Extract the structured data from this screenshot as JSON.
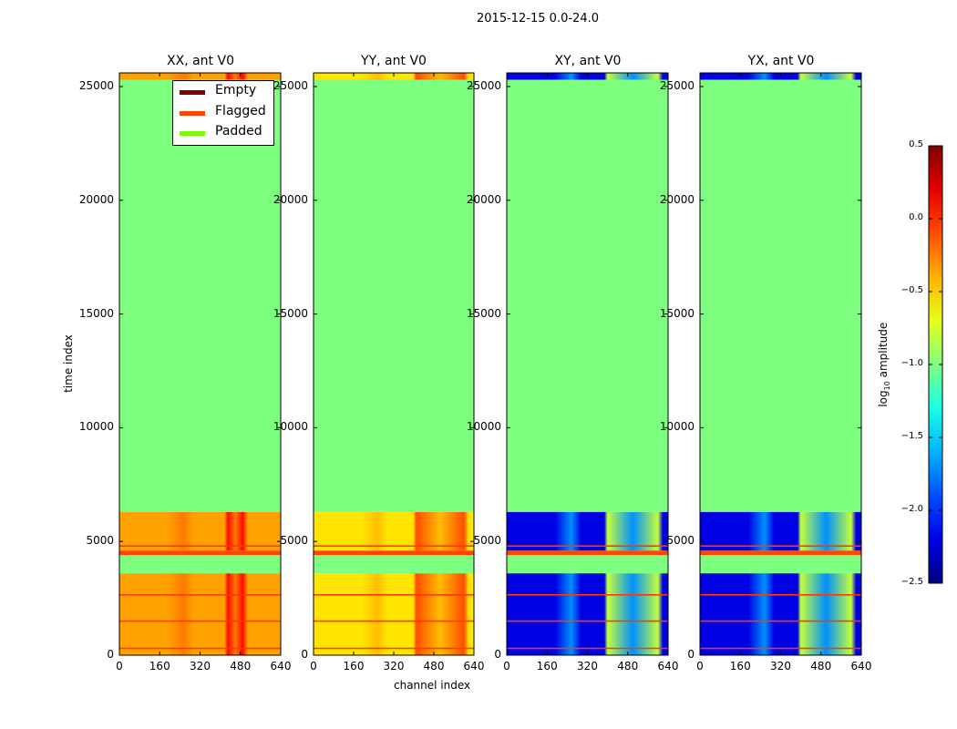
{
  "figure": {
    "title": "2015-12-15 0.0-24.0",
    "ylabel": "time index",
    "xlabel": "channel index"
  },
  "chart_data": [
    {
      "type": "heatmap",
      "title": "XX, ant V0",
      "pol": "XX",
      "xlim": [
        0,
        640
      ],
      "ylim": [
        0,
        25600
      ],
      "xticks": [
        "0",
        "160",
        "320",
        "480",
        "640"
      ],
      "yticks": [
        "0",
        "5000",
        "10000",
        "15000",
        "20000",
        "25000"
      ],
      "regions": [
        {
          "label": "data",
          "t_range": [
            0,
            3600
          ],
          "level": -0.35
        },
        {
          "label": "Padded",
          "t_range": [
            3600,
            4400
          ]
        },
        {
          "label": "Flagged",
          "t_range": [
            4400,
            4600
          ]
        },
        {
          "label": "data",
          "t_range": [
            4600,
            6300
          ],
          "level": -0.35
        },
        {
          "label": "Padded",
          "t_range": [
            6300,
            25300
          ]
        },
        {
          "label": "data",
          "t_range": [
            25300,
            25600
          ],
          "level": -0.3
        }
      ],
      "flag_lines": [
        300,
        1500,
        2650,
        4800
      ],
      "rfi_channels": [
        [
          430,
          490
        ]
      ]
    },
    {
      "type": "heatmap",
      "title": "YY, ant V0",
      "pol": "YY",
      "xlim": [
        0,
        640
      ],
      "ylim": [
        0,
        25600
      ],
      "xticks": [
        "0",
        "160",
        "320",
        "480",
        "640"
      ],
      "yticks": [
        "0",
        "5000",
        "10000",
        "15000",
        "20000",
        "25000"
      ],
      "regions": [
        {
          "label": "data",
          "t_range": [
            0,
            3600
          ],
          "level": -0.55
        },
        {
          "label": "Padded",
          "t_range": [
            3600,
            4400
          ]
        },
        {
          "label": "Flagged",
          "t_range": [
            4400,
            4600
          ]
        },
        {
          "label": "data",
          "t_range": [
            4600,
            6300
          ],
          "level": -0.55
        },
        {
          "label": "Padded",
          "t_range": [
            6300,
            25300
          ]
        },
        {
          "label": "data",
          "t_range": [
            25300,
            25600
          ],
          "level": -0.55
        }
      ],
      "flag_lines": [
        300,
        1500,
        2650,
        4800
      ],
      "rfi_channels": [
        [
          410,
          600
        ]
      ]
    },
    {
      "type": "heatmap",
      "title": "XY, ant V0",
      "pol": "XY",
      "xlim": [
        0,
        640
      ],
      "ylim": [
        0,
        25600
      ],
      "xticks": [
        "0",
        "160",
        "320",
        "480",
        "640"
      ],
      "yticks": [
        "0",
        "5000",
        "10000",
        "15000",
        "20000",
        "25000"
      ],
      "regions": [
        {
          "label": "data",
          "t_range": [
            0,
            3600
          ],
          "level": -2.2
        },
        {
          "label": "Padded",
          "t_range": [
            3600,
            4400
          ]
        },
        {
          "label": "Flagged",
          "t_range": [
            4400,
            4600
          ]
        },
        {
          "label": "data",
          "t_range": [
            4600,
            6300
          ],
          "level": -2.2
        },
        {
          "label": "Padded",
          "t_range": [
            6300,
            25300
          ]
        },
        {
          "label": "data",
          "t_range": [
            25300,
            25600
          ],
          "level": -2.2
        }
      ],
      "flag_lines": [
        300,
        1500,
        2650,
        4800
      ],
      "rfi_channels": [
        [
          400,
          600
        ]
      ]
    },
    {
      "type": "heatmap",
      "title": "YX, ant V0",
      "pol": "YX",
      "xlim": [
        0,
        640
      ],
      "ylim": [
        0,
        25600
      ],
      "xticks": [
        "0",
        "160",
        "320",
        "480",
        "640"
      ],
      "yticks": [
        "0",
        "5000",
        "10000",
        "15000",
        "20000",
        "25000"
      ],
      "regions": [
        {
          "label": "data",
          "t_range": [
            0,
            3600
          ],
          "level": -2.2
        },
        {
          "label": "Padded",
          "t_range": [
            3600,
            4400
          ]
        },
        {
          "label": "Flagged",
          "t_range": [
            4400,
            4600
          ]
        },
        {
          "label": "data",
          "t_range": [
            4600,
            6300
          ],
          "level": -2.2
        },
        {
          "label": "Padded",
          "t_range": [
            6300,
            25300
          ]
        },
        {
          "label": "data",
          "t_range": [
            25300,
            25600
          ],
          "level": -2.2
        }
      ],
      "flag_lines": [
        300,
        1500,
        2650,
        4800
      ],
      "rfi_channels": [
        [
          400,
          600
        ]
      ]
    }
  ],
  "legend": {
    "entries": [
      {
        "label": "Empty",
        "color": "#7f0000"
      },
      {
        "label": "Flagged",
        "color": "#ff4500"
      },
      {
        "label": "Padded",
        "color": "#7cfc00"
      }
    ]
  },
  "colorbar": {
    "label": "log10 amplitude",
    "label_main": "log",
    "label_sub": "10",
    "label_rest": " amplitude",
    "range": [
      -2.5,
      0.5
    ],
    "ticks": [
      "0.5",
      "0.0",
      "−0.5",
      "−1.0",
      "−1.5",
      "−2.0",
      "−2.5"
    ],
    "cmap": "jet"
  },
  "colors": {
    "padded": "#7fff7f",
    "flagged": "#ff4500",
    "flag_line": "#ff3a00",
    "cut_line": "#c8ffc8"
  }
}
